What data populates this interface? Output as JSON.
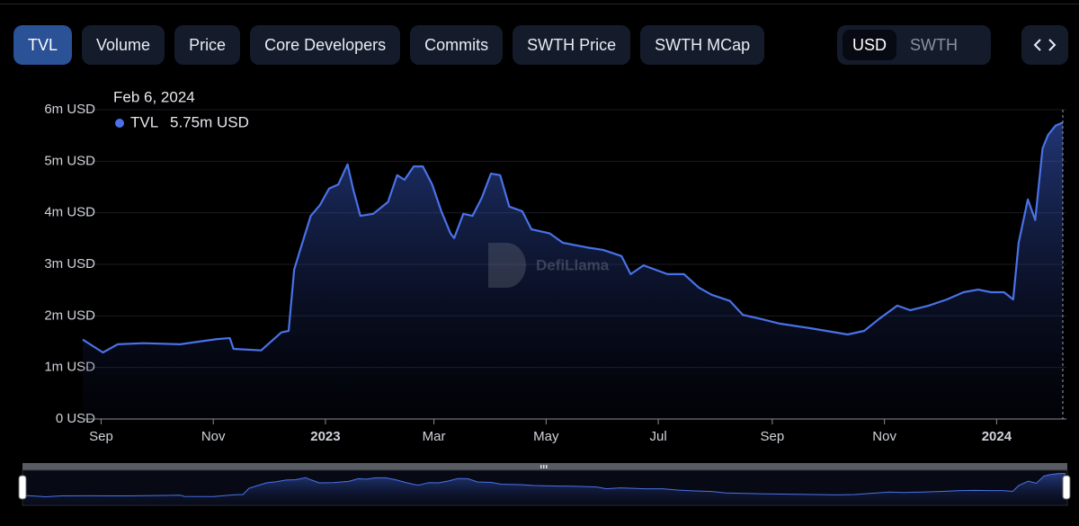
{
  "tabs": [
    {
      "label": "TVL",
      "active": true
    },
    {
      "label": "Volume",
      "active": false
    },
    {
      "label": "Price",
      "active": false
    },
    {
      "label": "Core Developers",
      "active": false
    },
    {
      "label": "Commits",
      "active": false
    },
    {
      "label": "SWTH Price",
      "active": false
    },
    {
      "label": "SWTH MCap",
      "active": false
    }
  ],
  "currency": [
    {
      "label": "USD",
      "active": true
    },
    {
      "label": "SWTH",
      "active": false
    }
  ],
  "watermark": "DefiLlama",
  "tooltip": {
    "date": "Feb 6, 2024",
    "value_label": "5.75m USD"
  },
  "chart_data": {
    "type": "area",
    "xlim": [
      "2022-08-22",
      "2024-02-06"
    ],
    "ylim": [
      0,
      6
    ],
    "yticks": [
      {
        "value": 0,
        "label": "0 USD"
      },
      {
        "value": 1,
        "label": "1m USD"
      },
      {
        "value": 2,
        "label": "2m USD"
      },
      {
        "value": 3,
        "label": "3m USD"
      },
      {
        "value": 4,
        "label": "4m USD"
      },
      {
        "value": 5,
        "label": "5m USD"
      },
      {
        "value": 6,
        "label": "6m USD"
      }
    ],
    "xticks": [
      {
        "value": "2022-09-01",
        "label": "Sep"
      },
      {
        "value": "2022-11-01",
        "label": "Nov"
      },
      {
        "value": "2023-01-01",
        "label": "2023"
      },
      {
        "value": "2023-03-01",
        "label": "Mar"
      },
      {
        "value": "2023-05-01",
        "label": "May"
      },
      {
        "value": "2023-07-01",
        "label": "Jul"
      },
      {
        "value": "2023-09-01",
        "label": "Sep"
      },
      {
        "value": "2023-11-01",
        "label": "Nov"
      },
      {
        "value": "2024-01-01",
        "label": "2024"
      }
    ],
    "grid": true,
    "x": [
      "2022-08-22",
      "2022-09-02",
      "2022-09-10",
      "2022-09-24",
      "2022-10-14",
      "2022-11-03",
      "2022-11-10",
      "2022-11-12",
      "2022-11-27",
      "2022-12-08",
      "2022-12-12",
      "2022-12-15",
      "2022-12-18",
      "2022-12-24",
      "2022-12-29",
      "2023-01-03",
      "2023-01-08",
      "2023-01-13",
      "2023-01-16",
      "2023-01-20",
      "2023-01-27",
      "2023-02-04",
      "2023-02-09",
      "2023-02-13",
      "2023-02-18",
      "2023-02-23",
      "2023-02-28",
      "2023-03-05",
      "2023-03-10",
      "2023-03-12",
      "2023-03-17",
      "2023-03-22",
      "2023-03-27",
      "2023-04-01",
      "2023-04-06",
      "2023-04-11",
      "2023-04-18",
      "2023-04-23",
      "2023-05-03",
      "2023-05-10",
      "2023-05-23",
      "2023-06-01",
      "2023-06-11",
      "2023-06-16",
      "2023-06-23",
      "2023-07-06",
      "2023-07-15",
      "2023-07-23",
      "2023-07-30",
      "2023-08-09",
      "2023-08-16",
      "2023-08-26",
      "2023-09-05",
      "2023-09-22",
      "2023-10-12",
      "2023-10-21",
      "2023-10-29",
      "2023-11-08",
      "2023-11-15",
      "2023-11-25",
      "2023-12-05",
      "2023-12-14",
      "2023-12-22",
      "2023-12-29",
      "2024-01-05",
      "2024-01-10",
      "2024-01-13",
      "2024-01-18",
      "2024-01-22",
      "2024-01-26",
      "2024-01-29",
      "2024-02-02",
      "2024-02-06"
    ],
    "series": [
      {
        "name": "TVL",
        "color": "#4a72e8",
        "values": [
          1.54,
          1.29,
          1.45,
          1.47,
          1.45,
          1.55,
          1.57,
          1.36,
          1.33,
          1.68,
          1.71,
          2.9,
          3.25,
          3.94,
          4.15,
          4.47,
          4.55,
          4.94,
          4.47,
          3.94,
          3.98,
          4.21,
          4.73,
          4.64,
          4.9,
          4.9,
          4.55,
          4.03,
          3.6,
          3.51,
          3.98,
          3.94,
          4.29,
          4.76,
          4.73,
          4.12,
          4.03,
          3.68,
          3.6,
          3.42,
          3.33,
          3.28,
          3.16,
          2.81,
          2.98,
          2.81,
          2.81,
          2.55,
          2.41,
          2.29,
          2.02,
          1.94,
          1.85,
          1.76,
          1.64,
          1.71,
          1.94,
          2.2,
          2.11,
          2.2,
          2.32,
          2.46,
          2.51,
          2.46,
          2.46,
          2.32,
          3.42,
          4.26,
          3.86,
          5.25,
          5.51,
          5.69,
          5.75
        ]
      }
    ]
  }
}
